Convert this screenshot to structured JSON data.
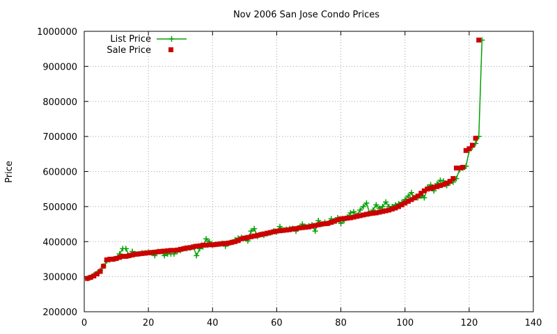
{
  "chart_data": {
    "type": "line",
    "title": "Nov 2006 San Jose Condo Prices",
    "xlabel": "",
    "ylabel": "Price",
    "xlim": [
      0,
      140
    ],
    "ylim": [
      200000,
      1000000
    ],
    "x_ticks": [
      0,
      20,
      40,
      60,
      80,
      100,
      120,
      140
    ],
    "x_tick_labels": [
      "0",
      "20",
      "40",
      "60",
      "80",
      "100",
      "120",
      "140"
    ],
    "y_ticks": [
      200000,
      300000,
      400000,
      500000,
      600000,
      700000,
      800000,
      900000,
      1000000
    ],
    "y_tick_labels": [
      "200000",
      "300000",
      "400000",
      "500000",
      "600000",
      "700000",
      "800000",
      "900000",
      "1000000"
    ],
    "grid": true,
    "legend_position": "top-left",
    "series": [
      {
        "name": "List Price",
        "style": "line-with-plus-markers",
        "color": "#00a000",
        "values": [
          295000,
          298000,
          305000,
          310000,
          318000,
          330000,
          345000,
          348000,
          350000,
          352000,
          365000,
          380000,
          380000,
          360000,
          372000,
          365000,
          365000,
          368000,
          368000,
          370000,
          368000,
          360000,
          372000,
          372000,
          360000,
          365000,
          365000,
          365000,
          372000,
          375000,
          380000,
          380000,
          382000,
          385000,
          360000,
          380000,
          385000,
          408000,
          400000,
          390000,
          392000,
          393000,
          395000,
          387000,
          395000,
          398000,
          405000,
          410000,
          412000,
          410000,
          402000,
          430000,
          437000,
          415000,
          420000,
          418000,
          422000,
          425000,
          430000,
          428000,
          443000,
          433000,
          435000,
          437000,
          438000,
          430000,
          440000,
          450000,
          443000,
          445000,
          448000,
          430000,
          460000,
          450000,
          455000,
          452000,
          465000,
          460000,
          468000,
          452000,
          460000,
          470000,
          482000,
          485000,
          475000,
          490000,
          500000,
          510000,
          480000,
          490000,
          505000,
          495000,
          500000,
          513000,
          500000,
          500000,
          505000,
          508000,
          512000,
          520000,
          530000,
          540000,
          525000,
          525000,
          530000,
          525000,
          555000,
          562000,
          545000,
          565000,
          575000,
          573000,
          560000,
          568000,
          570000,
          580000,
          605000,
          610000,
          615000,
          660000,
          670000,
          680000,
          700000,
          975000
        ]
      },
      {
        "name": "Sale Price",
        "style": "square-markers",
        "color": "#cc0000",
        "values": [
          295000,
          298000,
          302000,
          308000,
          315000,
          330000,
          348000,
          350000,
          350000,
          352000,
          355000,
          358000,
          358000,
          360000,
          362000,
          364000,
          365000,
          366000,
          367000,
          368000,
          369000,
          370000,
          371000,
          372000,
          373000,
          374000,
          375000,
          375000,
          376000,
          378000,
          380000,
          382000,
          383000,
          385000,
          387000,
          388000,
          390000,
          390000,
          391000,
          391000,
          392000,
          393000,
          394000,
          395000,
          396000,
          398000,
          400000,
          403000,
          408000,
          410000,
          412000,
          414000,
          416000,
          418000,
          420000,
          422000,
          424000,
          426000,
          428000,
          430000,
          431000,
          432000,
          433000,
          434000,
          436000,
          437000,
          439000,
          440000,
          441000,
          442000,
          444000,
          446000,
          448000,
          450000,
          451000,
          452000,
          455000,
          458000,
          462000,
          465000,
          466000,
          467000,
          468000,
          470000,
          472000,
          474000,
          476000,
          478000,
          480000,
          481000,
          482000,
          484000,
          486000,
          488000,
          490000,
          493000,
          496000,
          500000,
          505000,
          510000,
          515000,
          520000,
          525000,
          530000,
          538000,
          545000,
          550000,
          552000,
          555000,
          557000,
          560000,
          563000,
          567000,
          572000,
          580000,
          610000,
          610000,
          612000,
          660000,
          665000,
          675000,
          695000,
          975000
        ]
      }
    ]
  }
}
